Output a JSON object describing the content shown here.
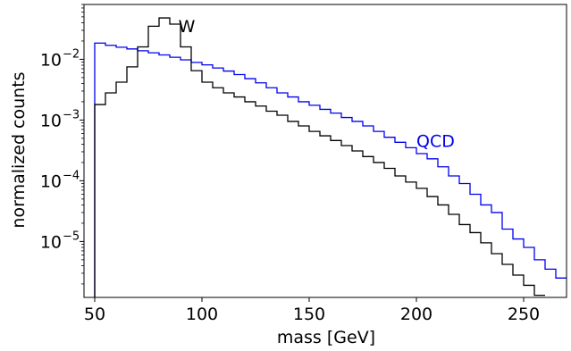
{
  "chart_data": {
    "type": "histogram-step",
    "xlabel": "mass [GeV]",
    "ylabel": "normalized counts",
    "xlim": [
      45,
      270
    ],
    "ylim": [
      1.2e-06,
      0.08
    ],
    "yscale": "log",
    "grid": false,
    "x_ticks": [
      {
        "value": 50,
        "label": "50"
      },
      {
        "value": 100,
        "label": "100"
      },
      {
        "value": 150,
        "label": "150"
      },
      {
        "value": 200,
        "label": "200"
      },
      {
        "value": 250,
        "label": "250"
      }
    ],
    "y_ticks": [
      {
        "value": 0.01,
        "base": "10",
        "exp": "−2"
      },
      {
        "value": 0.001,
        "base": "10",
        "exp": "−3"
      },
      {
        "value": 0.0001,
        "base": "10",
        "exp": "−4"
      },
      {
        "value": 1e-05,
        "base": "10",
        "exp": "−5"
      }
    ],
    "series": [
      {
        "name": "QCD",
        "color": "#0000ee",
        "label_at": {
          "x": 200,
          "y": 0.00036
        },
        "points": [
          [
            50,
            0.0185
          ],
          [
            55,
            0.017
          ],
          [
            60,
            0.0158
          ],
          [
            65,
            0.0148
          ],
          [
            70,
            0.0138
          ],
          [
            75,
            0.0128
          ],
          [
            80,
            0.0118
          ],
          [
            85,
            0.0108
          ],
          [
            90,
            0.0098
          ],
          [
            95,
            0.0089
          ],
          [
            100,
            0.0081
          ],
          [
            105,
            0.0072
          ],
          [
            110,
            0.0064
          ],
          [
            115,
            0.0056
          ],
          [
            120,
            0.0048
          ],
          [
            125,
            0.0041
          ],
          [
            130,
            0.0034
          ],
          [
            135,
            0.0028
          ],
          [
            140,
            0.0024
          ],
          [
            145,
            0.002
          ],
          [
            150,
            0.00175
          ],
          [
            155,
            0.0015
          ],
          [
            160,
            0.0013
          ],
          [
            165,
            0.0011
          ],
          [
            170,
            0.00095
          ],
          [
            175,
            0.0008
          ],
          [
            180,
            0.00065
          ],
          [
            185,
            0.00052
          ],
          [
            190,
            0.00043
          ],
          [
            195,
            0.00035
          ],
          [
            200,
            0.00028
          ],
          [
            205,
            0.00023
          ],
          [
            210,
            0.00017
          ],
          [
            215,
            0.00012
          ],
          [
            220,
            9e-05
          ],
          [
            225,
            6e-05
          ],
          [
            230,
            4e-05
          ],
          [
            235,
            3e-05
          ],
          [
            240,
            1.6e-05
          ],
          [
            245,
            1.1e-05
          ],
          [
            250,
            8e-06
          ],
          [
            255,
            5e-06
          ],
          [
            260,
            3.5e-06
          ],
          [
            265,
            2.5e-06
          ]
        ]
      },
      {
        "name": "W",
        "color": "#000000",
        "label_at": {
          "x": 89,
          "y": 0.028
        },
        "points": [
          [
            50,
            0.0018
          ],
          [
            55,
            0.0028
          ],
          [
            60,
            0.0042
          ],
          [
            65,
            0.0075
          ],
          [
            70,
            0.016
          ],
          [
            75,
            0.035
          ],
          [
            80,
            0.048
          ],
          [
            85,
            0.038
          ],
          [
            90,
            0.016
          ],
          [
            95,
            0.0065
          ],
          [
            100,
            0.0042
          ],
          [
            105,
            0.0034
          ],
          [
            110,
            0.0028
          ],
          [
            115,
            0.0024
          ],
          [
            120,
            0.002
          ],
          [
            125,
            0.0017
          ],
          [
            130,
            0.0014
          ],
          [
            135,
            0.0012
          ],
          [
            140,
            0.00095
          ],
          [
            145,
            0.0008
          ],
          [
            150,
            0.00065
          ],
          [
            155,
            0.00055
          ],
          [
            160,
            0.00046
          ],
          [
            165,
            0.00038
          ],
          [
            170,
            0.00031
          ],
          [
            175,
            0.00025
          ],
          [
            180,
            0.0002
          ],
          [
            185,
            0.00016
          ],
          [
            190,
            0.00012
          ],
          [
            195,
            9.5e-05
          ],
          [
            200,
            7.5e-05
          ],
          [
            205,
            5.5e-05
          ],
          [
            210,
            4e-05
          ],
          [
            215,
            2.8e-05
          ],
          [
            220,
            1.9e-05
          ],
          [
            225,
            1.4e-05
          ],
          [
            230,
            9.5e-06
          ],
          [
            235,
            6.3e-06
          ],
          [
            240,
            4.2e-06
          ],
          [
            245,
            2.8e-06
          ],
          [
            250,
            1.9e-06
          ],
          [
            255,
            1.3e-06
          ]
        ]
      }
    ]
  }
}
